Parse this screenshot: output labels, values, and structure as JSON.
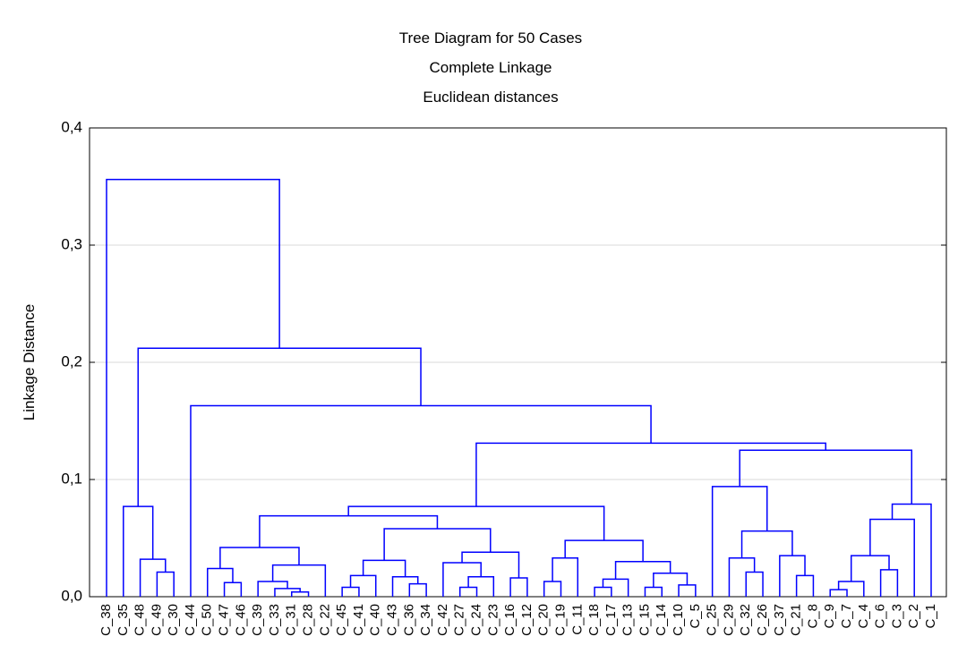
{
  "chart_data": {
    "type": "dendrogram",
    "title": "Tree Diagram for 50 Cases",
    "subtitle": "Complete Linkage",
    "subtitle2": "Euclidean distances",
    "y_label": "Linkage Distance",
    "color": "#0000ff",
    "grid": true,
    "ylim": [
      0,
      0.4
    ],
    "yticks": [
      {
        "value": 0,
        "label": "0,0"
      },
      {
        "value": 0.1,
        "label": "0,1"
      },
      {
        "value": 0.2,
        "label": "0,2"
      },
      {
        "value": 0.3,
        "label": "0,3"
      },
      {
        "value": 0.4,
        "label": "0,4"
      }
    ],
    "tree": {
      "height": 0.356,
      "children": [
        "C_38",
        {
          "height": 0.212,
          "children": [
            {
              "height": 0.077,
              "children": [
                "C_35",
                {
                  "height": 0.032,
                  "children": [
                    "C_48",
                    {
                      "height": 0.021,
                      "children": [
                        "C_49",
                        "C_30"
                      ]
                    }
                  ]
                }
              ]
            },
            {
              "height": 0.163,
              "children": [
                "C_44",
                {
                  "height": 0.131,
                  "children": [
                    {
                      "height": 0.077,
                      "children": [
                        {
                          "height": 0.069,
                          "children": [
                            {
                              "height": 0.042,
                              "children": [
                                {
                                  "height": 0.024,
                                  "children": [
                                    "C_50",
                                    {
                                      "height": 0.012,
                                      "children": [
                                        "C_47",
                                        "C_46"
                                      ]
                                    }
                                  ]
                                },
                                {
                                  "height": 0.027,
                                  "children": [
                                    {
                                      "height": 0.013,
                                      "children": [
                                        "C_39",
                                        {
                                          "height": 0.007,
                                          "children": [
                                            "C_33",
                                            {
                                              "height": 0.004,
                                              "children": [
                                                "C_31",
                                                "C_28"
                                              ]
                                            }
                                          ]
                                        }
                                      ]
                                    },
                                    "C_22"
                                  ]
                                }
                              ]
                            },
                            {
                              "height": 0.058,
                              "children": [
                                {
                                  "height": 0.031,
                                  "children": [
                                    {
                                      "height": 0.018,
                                      "children": [
                                        {
                                          "height": 0.008,
                                          "children": [
                                            "C_45",
                                            "C_41"
                                          ]
                                        },
                                        "C_40"
                                      ]
                                    },
                                    {
                                      "height": 0.017,
                                      "children": [
                                        "C_43",
                                        {
                                          "height": 0.011,
                                          "children": [
                                            "C_36",
                                            "C_34"
                                          ]
                                        }
                                      ]
                                    }
                                  ]
                                },
                                {
                                  "height": 0.038,
                                  "children": [
                                    {
                                      "height": 0.029,
                                      "children": [
                                        "C_42",
                                        {
                                          "height": 0.017,
                                          "children": [
                                            {
                                              "height": 0.008,
                                              "children": [
                                                "C_27",
                                                "C_24"
                                              ]
                                            },
                                            "C_23"
                                          ]
                                        }
                                      ]
                                    },
                                    {
                                      "height": 0.016,
                                      "children": [
                                        "C_16",
                                        "C_12"
                                      ]
                                    }
                                  ]
                                }
                              ]
                            }
                          ]
                        },
                        {
                          "height": 0.048,
                          "children": [
                            {
                              "height": 0.033,
                              "children": [
                                {
                                  "height": 0.013,
                                  "children": [
                                    "C_20",
                                    "C_19"
                                  ]
                                },
                                "C_11"
                              ]
                            },
                            {
                              "height": 0.03,
                              "children": [
                                {
                                  "height": 0.015,
                                  "children": [
                                    {
                                      "height": 0.008,
                                      "children": [
                                        "C_18",
                                        "C_17"
                                      ]
                                    },
                                    "C_13"
                                  ]
                                },
                                {
                                  "height": 0.02,
                                  "children": [
                                    {
                                      "height": 0.008,
                                      "children": [
                                        "C_15",
                                        "C_14"
                                      ]
                                    },
                                    {
                                      "height": 0.01,
                                      "children": [
                                        "C_10",
                                        "C_5"
                                      ]
                                    }
                                  ]
                                }
                              ]
                            }
                          ]
                        }
                      ]
                    },
                    {
                      "height": 0.125,
                      "children": [
                        {
                          "height": 0.094,
                          "children": [
                            "C_25",
                            {
                              "height": 0.056,
                              "children": [
                                {
                                  "height": 0.033,
                                  "children": [
                                    "C_29",
                                    {
                                      "height": 0.021,
                                      "children": [
                                        "C_32",
                                        "C_26"
                                      ]
                                    }
                                  ]
                                },
                                {
                                  "height": 0.035,
                                  "children": [
                                    "C_37",
                                    {
                                      "height": 0.018,
                                      "children": [
                                        "C_21",
                                        "C_8"
                                      ]
                                    }
                                  ]
                                }
                              ]
                            }
                          ]
                        },
                        {
                          "height": 0.079,
                          "children": [
                            {
                              "height": 0.066,
                              "children": [
                                {
                                  "height": 0.035,
                                  "children": [
                                    {
                                      "height": 0.013,
                                      "children": [
                                        {
                                          "height": 0.006,
                                          "children": [
                                            "C_9",
                                            "C_7"
                                          ]
                                        },
                                        "C_4"
                                      ]
                                    },
                                    {
                                      "height": 0.023,
                                      "children": [
                                        "C_6",
                                        "C_3"
                                      ]
                                    }
                                  ]
                                },
                                "C_2"
                              ]
                            },
                            "C_1"
                          ]
                        }
                      ]
                    }
                  ]
                }
              ]
            }
          ]
        }
      ]
    }
  }
}
